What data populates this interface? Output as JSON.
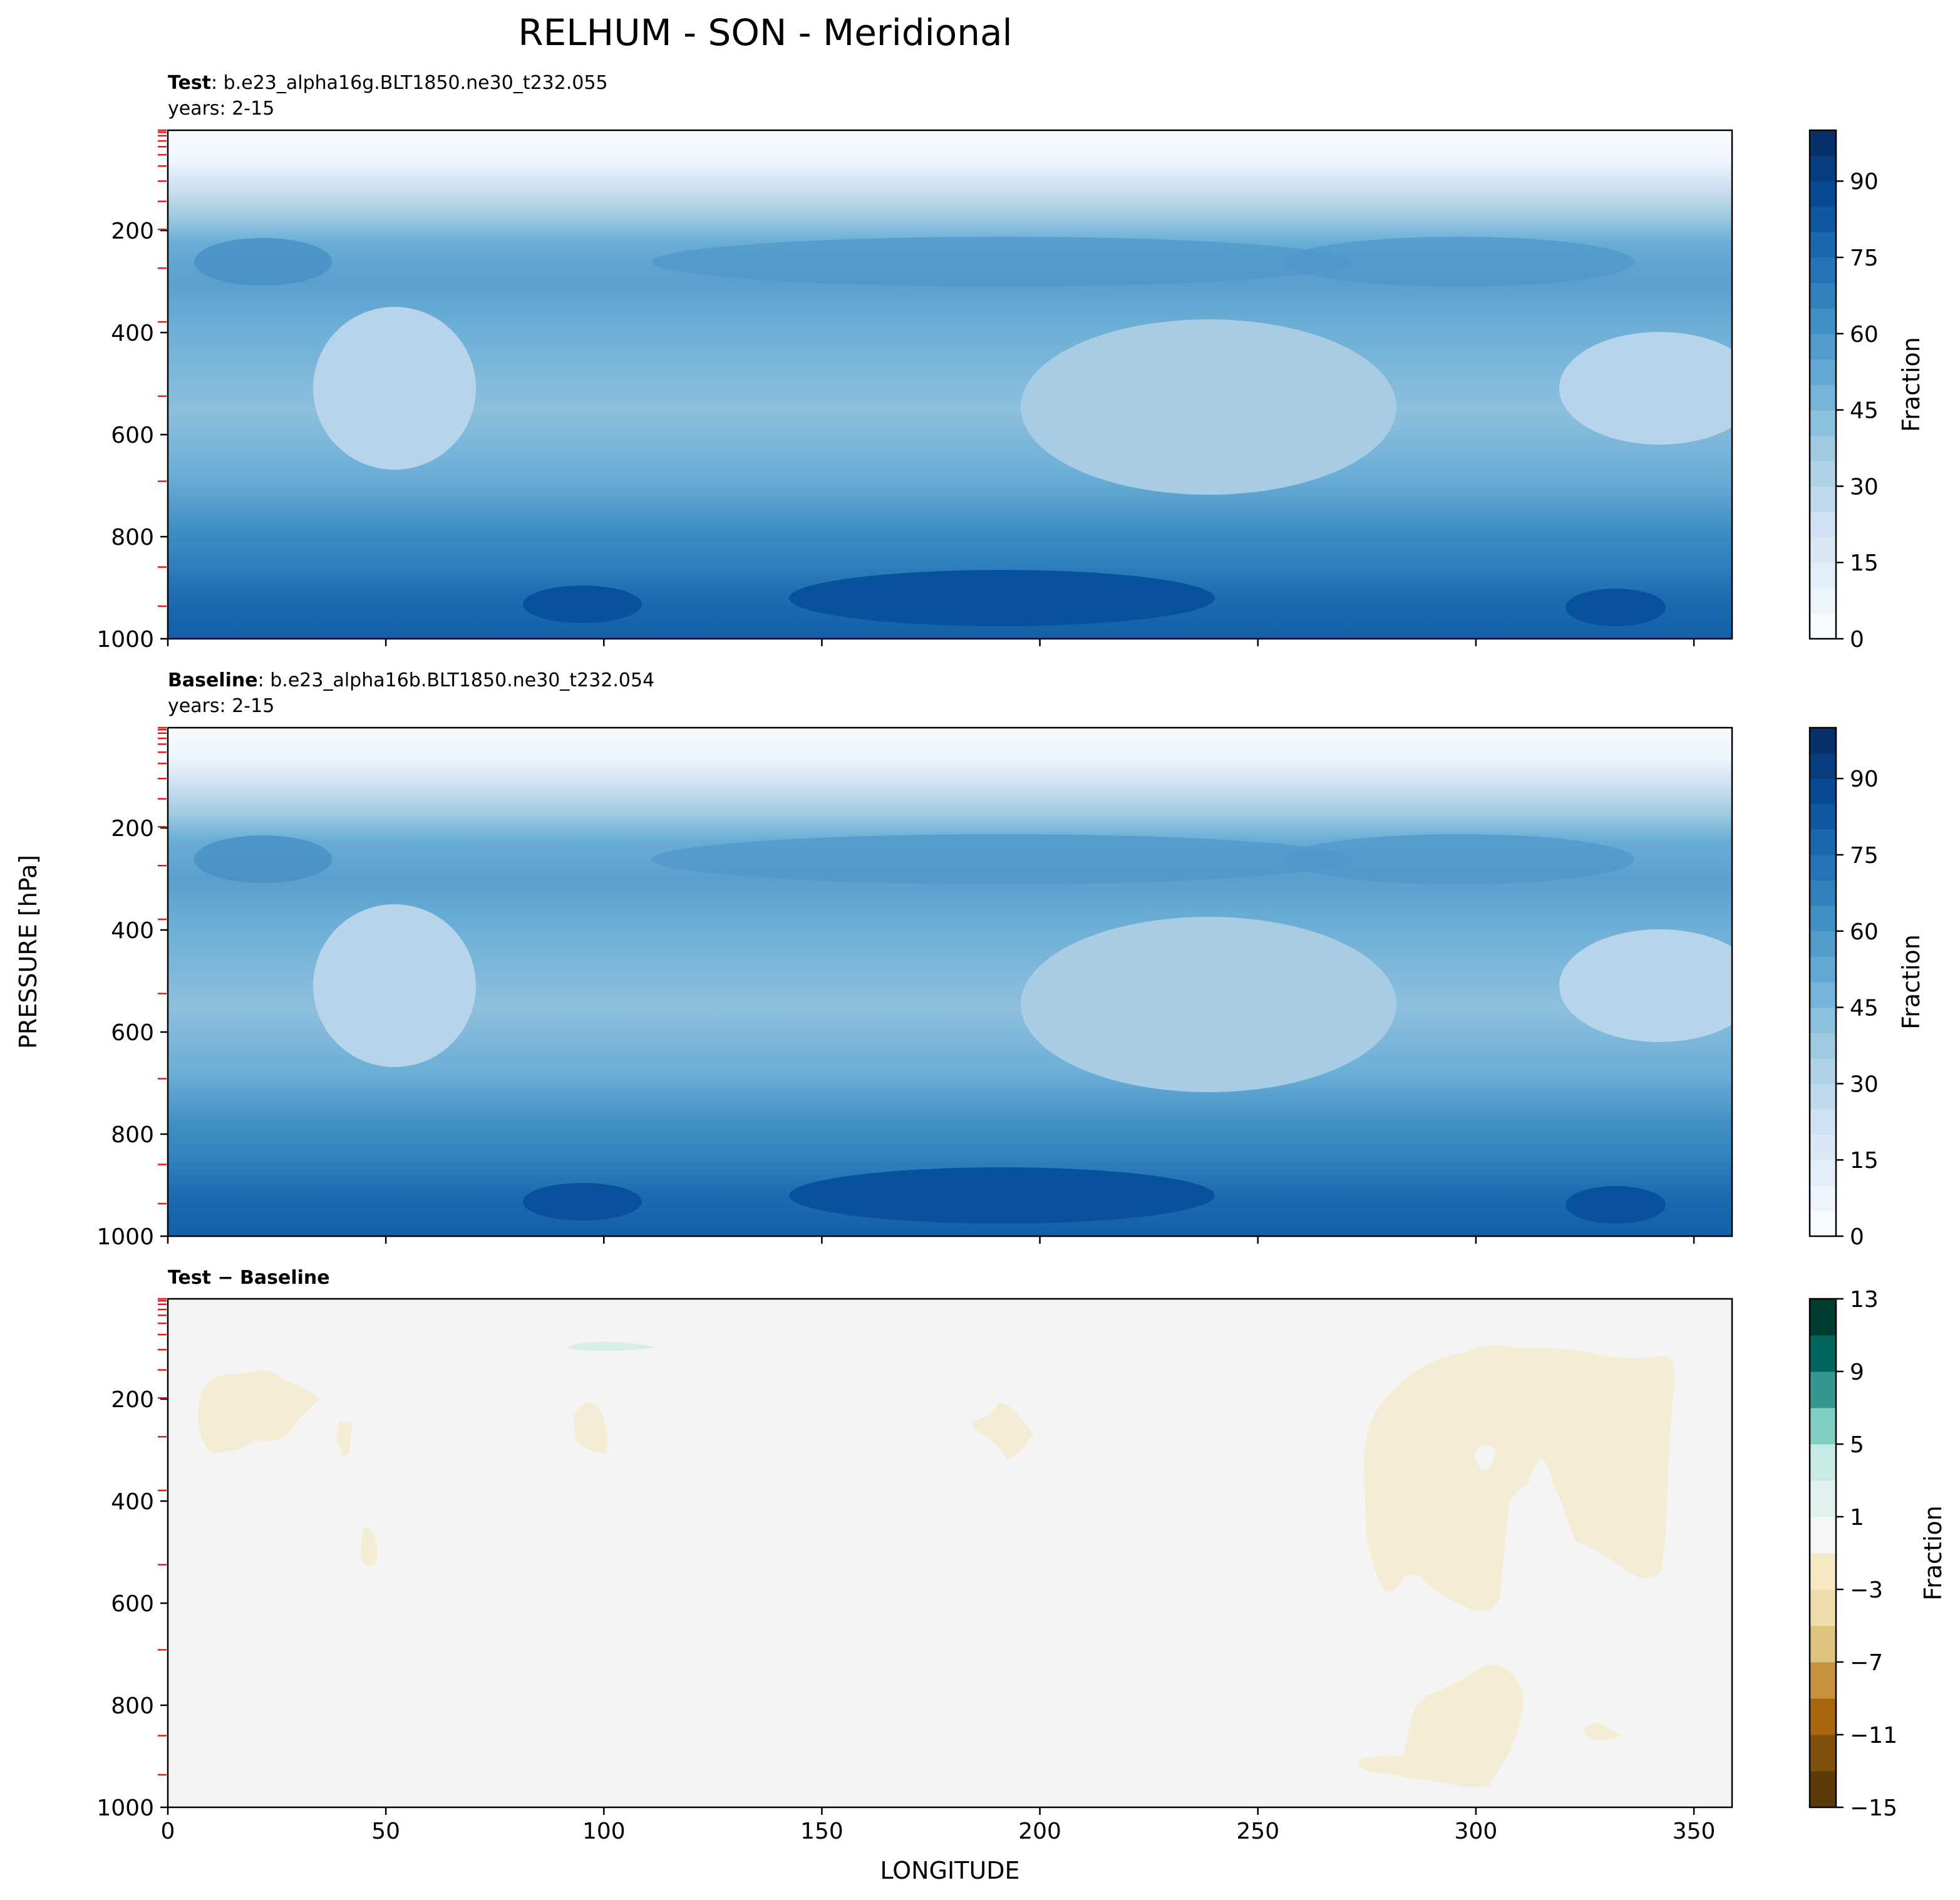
{
  "figure": {
    "title": "RELHUM - SON - Meridional",
    "xlabel": "LONGITUDE",
    "ylabel": "PRESSURE [hPa]"
  },
  "colors": {
    "blues": [
      "#f7fbff",
      "#edf4fc",
      "#e3eef9",
      "#d9e7f5",
      "#cfe1f2",
      "#c1d9ed",
      "#b0d2e8",
      "#9ecae1",
      "#8abfdd",
      "#75b4d8",
      "#62a8d3",
      "#519ccc",
      "#4090c5",
      "#3282be",
      "#2474b7",
      "#1967ad",
      "#0e59a2",
      "#084b94",
      "#083d7f",
      "#08306b"
    ],
    "diff": [
      "#5c3a0a",
      "#80500c",
      "#a8670f",
      "#c5913f",
      "#dfc27d",
      "#efdcab",
      "#f6e8c3",
      "#f5f5f5",
      "#dff2ef",
      "#c7eae5",
      "#80cdc1",
      "#35978f",
      "#01665e",
      "#003c30"
    ],
    "diff_background": "#f3f4f3",
    "diff_patch": "#f5ecd6",
    "diff_patch_positive": "#d7efe9"
  },
  "chart_data": [
    {
      "type": "heatmap",
      "panel": "test",
      "label_bold": "Test",
      "label_rest": ": b.e23_alpha16g.BLT1850.ne30_t232.055",
      "years": "years: 2-15",
      "colorbar_label": "Fraction",
      "colorbar_ticks": [
        "0",
        "15",
        "30",
        "45",
        "60",
        "75",
        "90"
      ],
      "colorbar_range": [
        0,
        100
      ],
      "xlim": [
        0,
        358.75
      ],
      "ylim": [
        1000,
        3.64
      ],
      "ytick_labels": [
        "200",
        "400",
        "600",
        "800",
        "1000"
      ],
      "xticks": [
        0,
        50,
        100,
        150,
        200,
        250,
        300,
        350
      ]
    },
    {
      "type": "heatmap",
      "panel": "baseline",
      "label_bold": "Baseline",
      "label_rest": ": b.e23_alpha16b.BLT1850.ne30_t232.054",
      "years": "years: 2-15",
      "colorbar_label": "Fraction",
      "colorbar_ticks": [
        "0",
        "15",
        "30",
        "45",
        "60",
        "75",
        "90"
      ],
      "colorbar_range": [
        0,
        100
      ],
      "xlim": [
        0,
        358.75
      ],
      "ylim": [
        1000,
        3.64
      ],
      "ytick_labels": [
        "200",
        "400",
        "600",
        "800",
        "1000"
      ],
      "xticks": [
        0,
        50,
        100,
        150,
        200,
        250,
        300,
        350
      ]
    },
    {
      "type": "heatmap",
      "panel": "difference",
      "label_bold": "Test − Baseline",
      "colorbar_label": "Fraction",
      "colorbar_ticks": [
        "13",
        "9",
        "5",
        "1",
        "−3",
        "−7",
        "−11",
        "−15"
      ],
      "colorbar_range": [
        -15,
        13
      ],
      "xlim": [
        0,
        358.75
      ],
      "ylim": [
        1000,
        3.64
      ],
      "ytick_labels": [
        "200",
        "400",
        "600",
        "800",
        "1000"
      ],
      "xtick_labels": [
        "0",
        "50",
        "100",
        "150",
        "200",
        "250",
        "300",
        "350"
      ],
      "xticks": [
        0,
        50,
        100,
        150,
        200,
        250,
        300,
        350
      ]
    }
  ]
}
